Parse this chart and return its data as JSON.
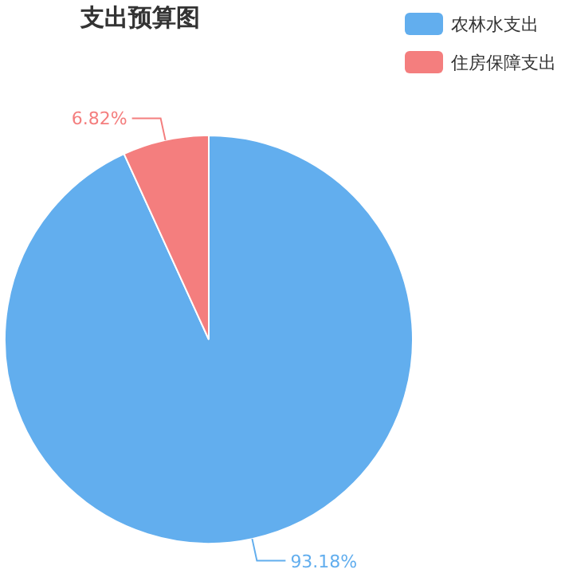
{
  "chart_data": {
    "type": "pie",
    "title": "支出预算图",
    "categories": [
      "农林水支出",
      "住房保障支出"
    ],
    "values": [
      93.18,
      6.82
    ],
    "colors": [
      "#62aeee",
      "#f47e7e"
    ],
    "value_labels": [
      "93.18%",
      "6.82%"
    ],
    "legend": "top right"
  }
}
